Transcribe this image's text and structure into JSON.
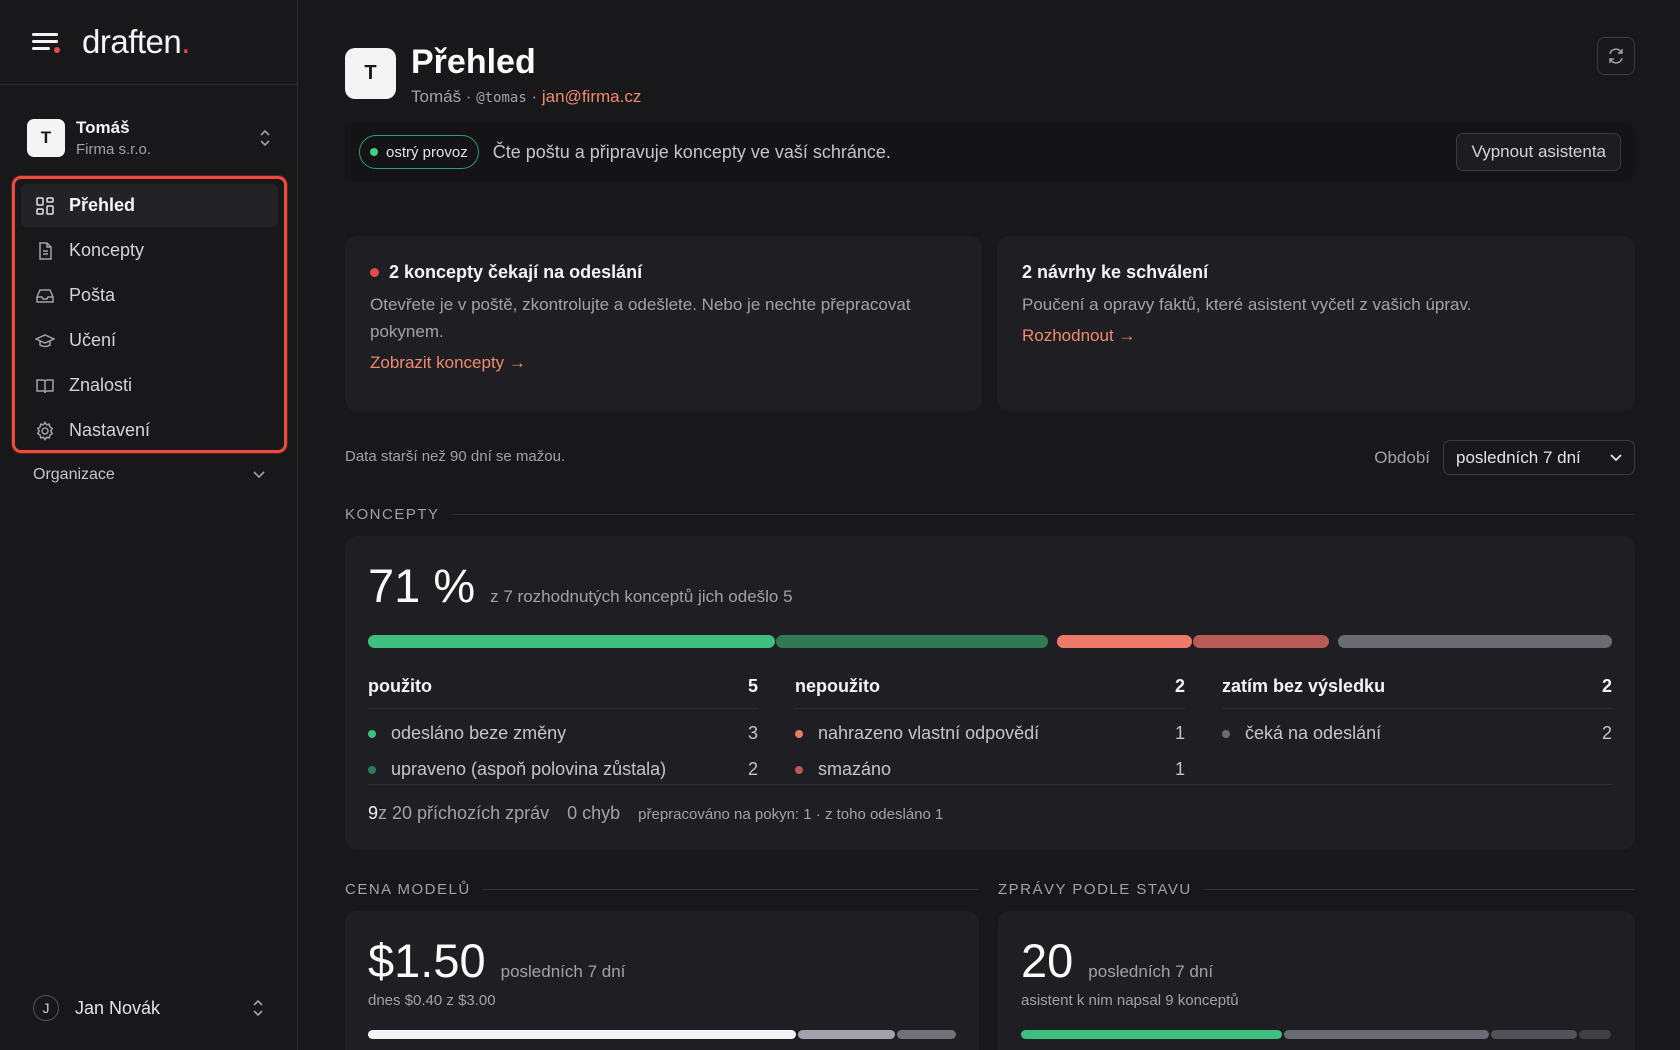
{
  "brand": {
    "name": "draften",
    "dot": "."
  },
  "workspace": {
    "avatar": "T",
    "name": "Tomáš",
    "org": "Firma s.r.o."
  },
  "nav": {
    "items": [
      {
        "label": "Přehled",
        "icon": "grid-icon",
        "active": true
      },
      {
        "label": "Koncepty",
        "icon": "document-icon"
      },
      {
        "label": "Pošta",
        "icon": "inbox-icon"
      },
      {
        "label": "Učení",
        "icon": "graduation-cap-icon"
      },
      {
        "label": "Znalosti",
        "icon": "book-icon"
      },
      {
        "label": "Nastavení",
        "icon": "gear-icon"
      }
    ]
  },
  "org_section": {
    "label": "Organizace"
  },
  "user": {
    "avatar": "J",
    "name": "Jan Novák"
  },
  "header": {
    "avatar": "T",
    "title": "Přehled",
    "name": "Tomáš",
    "sep1": " · ",
    "handle": "@tomas",
    "sep2": " · ",
    "email": "jan@firma.cz"
  },
  "status": {
    "badge": "ostrý provoz",
    "text": "Čte poštu a připravuje koncepty ve vaší schránce.",
    "button": "Vypnout asistenta"
  },
  "cards": {
    "pending": {
      "title": "2 koncepty čekají na odeslání",
      "text": "Otevřete je v poště, zkontrolujte a odešlete. Nebo je nechte přepracovat pokynem.",
      "link": "Zobrazit koncepty →"
    },
    "proposals": {
      "title": "2 návrhy ke schválení",
      "text": "Poučení a opravy faktů, které asistent vyčetl z vašich úprav.",
      "link": "Rozhodnout →"
    }
  },
  "data_note": "Data starší než 90 dní se mažou.",
  "period": {
    "label": "Období",
    "value": "posledních 7 dní"
  },
  "concepts": {
    "section": "KONCEPTY",
    "big": "71 %",
    "caption": "z 7 rozhodnutých konceptů jich odešlo 5",
    "columns": [
      {
        "title": "použito",
        "total": "5",
        "rows": [
          {
            "label": "odesláno beze změny",
            "value": "3",
            "color": "#3fbf7f"
          },
          {
            "label": "upraveno (aspoň polovina zůstala)",
            "value": "2",
            "color": "#2f7a55"
          }
        ]
      },
      {
        "title": "nepoužito",
        "total": "2",
        "rows": [
          {
            "label": "nahrazeno vlastní odpovědí",
            "value": "1",
            "color": "#f07a6a"
          },
          {
            "label": "smazáno",
            "value": "1",
            "color": "#b85a55"
          }
        ]
      },
      {
        "title": "zatím bez výsledku",
        "total": "2",
        "rows": [
          {
            "label": "čeká na odeslání",
            "value": "2",
            "color": "#6b6b73"
          }
        ]
      }
    ],
    "footer": {
      "count": "9",
      "count_text": " z 20 příchozích zpráv",
      "errors": "0 chyb",
      "reworked": "přepracováno na pokyn: 1 · z toho odesláno 1"
    }
  },
  "cost": {
    "section": "CENA MODELŮ",
    "big": "$1.50",
    "period": "posledních 7 dní",
    "sub": "dnes $0.40 z $3.00"
  },
  "states": {
    "section": "ZPRÁVY PODLE STAVU",
    "big": "20",
    "period": "posledních 7 dní",
    "sub": "asistent k nim napsal 9 konceptů"
  }
}
